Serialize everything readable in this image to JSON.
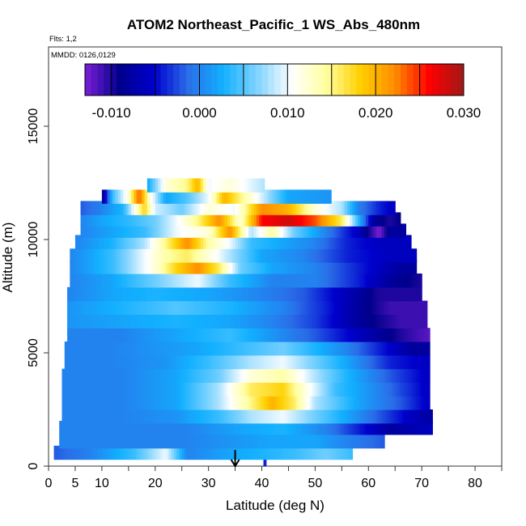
{
  "chart_data": {
    "type": "heatmap",
    "title": "ATOM2 Northeast_Pacific_1 WS_Abs_480nm",
    "flights_label": "Flts: 1,2",
    "dates_label": "MMDD: 0126,0129",
    "xlabel": "Latitude (deg N)",
    "ylabel": "Altitude (m)",
    "xlim": [
      0,
      85
    ],
    "ylim": [
      0,
      18500
    ],
    "x_ticks": [
      0,
      5,
      10,
      20,
      30,
      40,
      50,
      60,
      70,
      80
    ],
    "x_minor_ticks": [
      15,
      25,
      35,
      45,
      55,
      65,
      75,
      85
    ],
    "y_ticks": [
      0,
      5000,
      10000,
      15000
    ],
    "colorbar": {
      "min": -0.013,
      "max": 0.03,
      "ticks": [
        "-0.010",
        "0.000",
        "0.010",
        "0.020",
        "0.030"
      ],
      "tick_values": [
        -0.01,
        0.0,
        0.01,
        0.02,
        0.03
      ],
      "colors": [
        "#7b1fd6",
        "#00008c",
        "#0000cd",
        "#2a6ee8",
        "#12b0ff",
        "#7fd3ff",
        "#ffffff",
        "#ffffa0",
        "#ffd000",
        "#ff8c00",
        "#ff0000",
        "#a01818"
      ]
    },
    "marker": {
      "latitude": 35,
      "label": "arrow"
    },
    "layers": [
      {
        "alt": 12400,
        "lat_min": 18.5,
        "lat_max": 40.5,
        "stops": [
          [
            18.5,
            0.002
          ],
          [
            22,
            0.012
          ],
          [
            26,
            0.015
          ],
          [
            28,
            0.02
          ],
          [
            30,
            0.01
          ],
          [
            34,
            0.012
          ],
          [
            40.5,
            0.008
          ]
        ]
      },
      {
        "alt": 11900,
        "lat_min": 10,
        "lat_max": 53,
        "stops": [
          [
            10,
            -0.01
          ],
          [
            12,
            0.004
          ],
          [
            15,
            0.012
          ],
          [
            17,
            0.024
          ],
          [
            19,
            0.012
          ],
          [
            22,
            0.002
          ],
          [
            26,
            0.005
          ],
          [
            30,
            0.01
          ],
          [
            33,
            0.02
          ],
          [
            38,
            0.012
          ],
          [
            45,
            0.002
          ],
          [
            53,
            0.001
          ]
        ]
      },
      {
        "alt": 11400,
        "lat_min": 6,
        "lat_max": 65,
        "stops": [
          [
            6,
            -0.002
          ],
          [
            10,
            0.0
          ],
          [
            14,
            0.003
          ],
          [
            18,
            0.018
          ],
          [
            20,
            0.009
          ],
          [
            25,
            0.006
          ],
          [
            30,
            0.012
          ],
          [
            35,
            0.01
          ],
          [
            40,
            0.022
          ],
          [
            45,
            0.02
          ],
          [
            50,
            0.012
          ],
          [
            55,
            0.008
          ],
          [
            58,
            0.0
          ],
          [
            62,
            -0.004
          ],
          [
            65,
            -0.006
          ]
        ]
      },
      {
        "alt": 10900,
        "lat_min": 6,
        "lat_max": 66,
        "stops": [
          [
            6,
            0.0
          ],
          [
            10,
            0.002
          ],
          [
            16,
            0.004
          ],
          [
            20,
            0.006
          ],
          [
            24,
            0.01
          ],
          [
            28,
            0.015
          ],
          [
            32,
            0.022
          ],
          [
            36,
            0.012
          ],
          [
            40,
            0.026
          ],
          [
            45,
            0.028
          ],
          [
            50,
            0.024
          ],
          [
            55,
            0.016
          ],
          [
            58,
            0.004
          ],
          [
            61,
            -0.008
          ],
          [
            64,
            -0.01
          ],
          [
            66,
            -0.009
          ]
        ]
      },
      {
        "alt": 10400,
        "lat_min": 6,
        "lat_max": 67,
        "stops": [
          [
            6,
            0.0
          ],
          [
            12,
            0.002
          ],
          [
            18,
            0.004
          ],
          [
            24,
            0.01
          ],
          [
            30,
            0.012
          ],
          [
            34,
            0.022
          ],
          [
            38,
            0.008
          ],
          [
            42,
            0.014
          ],
          [
            46,
            0.006
          ],
          [
            52,
            0.0
          ],
          [
            58,
            -0.006
          ],
          [
            62,
            -0.013
          ],
          [
            64,
            -0.008
          ],
          [
            67,
            -0.008
          ]
        ]
      },
      {
        "alt": 9900,
        "lat_min": 5,
        "lat_max": 68,
        "stops": [
          [
            5,
            0.0
          ],
          [
            12,
            0.003
          ],
          [
            18,
            0.008
          ],
          [
            22,
            0.015
          ],
          [
            26,
            0.022
          ],
          [
            30,
            0.014
          ],
          [
            34,
            0.01
          ],
          [
            38,
            0.004
          ],
          [
            44,
            0.002
          ],
          [
            50,
            0.0
          ],
          [
            56,
            -0.004
          ],
          [
            62,
            -0.006
          ],
          [
            68,
            -0.006
          ]
        ]
      },
      {
        "alt": 9300,
        "lat_min": 4,
        "lat_max": 69,
        "stops": [
          [
            4,
            0.0
          ],
          [
            12,
            0.004
          ],
          [
            18,
            0.01
          ],
          [
            22,
            0.014
          ],
          [
            26,
            0.016
          ],
          [
            30,
            0.012
          ],
          [
            34,
            0.008
          ],
          [
            40,
            0.002
          ],
          [
            48,
            0.0
          ],
          [
            56,
            -0.004
          ],
          [
            64,
            -0.006
          ],
          [
            69,
            -0.006
          ]
        ]
      },
      {
        "alt": 8800,
        "lat_min": 4,
        "lat_max": 69,
        "stops": [
          [
            4,
            0.0
          ],
          [
            12,
            0.004
          ],
          [
            20,
            0.012
          ],
          [
            24,
            0.018
          ],
          [
            28,
            0.022
          ],
          [
            32,
            0.016
          ],
          [
            36,
            0.006
          ],
          [
            42,
            0.002
          ],
          [
            50,
            0.0
          ],
          [
            58,
            -0.004
          ],
          [
            66,
            -0.008
          ],
          [
            69,
            -0.008
          ]
        ]
      },
      {
        "alt": 8200,
        "lat_min": 4,
        "lat_max": 70,
        "stops": [
          [
            4,
            0.0
          ],
          [
            12,
            0.002
          ],
          [
            20,
            0.006
          ],
          [
            28,
            0.01
          ],
          [
            34,
            0.004
          ],
          [
            42,
            0.0
          ],
          [
            50,
            0.0
          ],
          [
            58,
            -0.004
          ],
          [
            64,
            -0.008
          ],
          [
            70,
            -0.01
          ]
        ]
      },
      {
        "alt": 7600,
        "lat_min": 3.5,
        "lat_max": 70,
        "stops": [
          [
            3.5,
            0.0
          ],
          [
            12,
            0.002
          ],
          [
            20,
            0.003
          ],
          [
            30,
            0.002
          ],
          [
            40,
            0.0
          ],
          [
            48,
            -0.002
          ],
          [
            55,
            -0.006
          ],
          [
            62,
            -0.01
          ],
          [
            70,
            -0.01
          ]
        ]
      },
      {
        "alt": 7000,
        "lat_min": 3.5,
        "lat_max": 71,
        "stops": [
          [
            3.5,
            0.001
          ],
          [
            14,
            0.003
          ],
          [
            24,
            0.005
          ],
          [
            34,
            0.003
          ],
          [
            44,
            0.0
          ],
          [
            52,
            -0.004
          ],
          [
            58,
            -0.008
          ],
          [
            64,
            -0.011
          ],
          [
            71,
            -0.011
          ]
        ]
      },
      {
        "alt": 6400,
        "lat_min": 3.5,
        "lat_max": 71,
        "stops": [
          [
            3.5,
            0.001
          ],
          [
            14,
            0.002
          ],
          [
            24,
            0.003
          ],
          [
            34,
            0.002
          ],
          [
            42,
            0.0
          ],
          [
            50,
            -0.003
          ],
          [
            58,
            -0.008
          ],
          [
            66,
            -0.011
          ],
          [
            71,
            -0.011
          ]
        ]
      },
      {
        "alt": 5800,
        "lat_min": 3.5,
        "lat_max": 71.5,
        "stops": [
          [
            3.5,
            0.0
          ],
          [
            14,
            0.0
          ],
          [
            24,
            0.002
          ],
          [
            34,
            0.004
          ],
          [
            42,
            0.001
          ],
          [
            50,
            -0.002
          ],
          [
            58,
            -0.006
          ],
          [
            66,
            -0.01
          ],
          [
            71.5,
            -0.012
          ]
        ]
      },
      {
        "alt": 5200,
        "lat_min": 3,
        "lat_max": 71.5,
        "stops": [
          [
            3,
            0.0
          ],
          [
            12,
            0.0
          ],
          [
            20,
            0.001
          ],
          [
            28,
            0.002
          ],
          [
            36,
            0.004
          ],
          [
            44,
            0.006
          ],
          [
            50,
            0.003
          ],
          [
            56,
            0.0
          ],
          [
            62,
            -0.004
          ],
          [
            68,
            -0.008
          ],
          [
            71.5,
            -0.008
          ]
        ]
      },
      {
        "alt": 4600,
        "lat_min": 3,
        "lat_max": 71.5,
        "stops": [
          [
            3,
            0.0
          ],
          [
            12,
            0.0
          ],
          [
            22,
            0.001
          ],
          [
            30,
            0.004
          ],
          [
            38,
            0.008
          ],
          [
            44,
            0.01
          ],
          [
            50,
            0.006
          ],
          [
            56,
            0.002
          ],
          [
            64,
            -0.004
          ],
          [
            71.5,
            -0.006
          ]
        ]
      },
      {
        "alt": 4000,
        "lat_min": 2.5,
        "lat_max": 71.5,
        "stops": [
          [
            2.5,
            0.0
          ],
          [
            14,
            0.0
          ],
          [
            24,
            0.002
          ],
          [
            32,
            0.006
          ],
          [
            38,
            0.012
          ],
          [
            44,
            0.014
          ],
          [
            50,
            0.008
          ],
          [
            56,
            0.003
          ],
          [
            64,
            -0.002
          ],
          [
            71.5,
            -0.006
          ]
        ]
      },
      {
        "alt": 3400,
        "lat_min": 2.5,
        "lat_max": 71.5,
        "stops": [
          [
            2.5,
            0.0
          ],
          [
            14,
            0.0
          ],
          [
            24,
            0.002
          ],
          [
            32,
            0.008
          ],
          [
            38,
            0.016
          ],
          [
            44,
            0.018
          ],
          [
            48,
            0.012
          ],
          [
            54,
            0.004
          ],
          [
            62,
            0.0
          ],
          [
            71.5,
            -0.006
          ]
        ]
      },
      {
        "alt": 2800,
        "lat_min": 2.5,
        "lat_max": 71.5,
        "stops": [
          [
            2.5,
            0.0
          ],
          [
            14,
            0.0
          ],
          [
            24,
            0.002
          ],
          [
            32,
            0.008
          ],
          [
            38,
            0.015
          ],
          [
            42,
            0.02
          ],
          [
            46,
            0.016
          ],
          [
            50,
            0.008
          ],
          [
            58,
            0.002
          ],
          [
            66,
            -0.002
          ],
          [
            71.5,
            -0.006
          ]
        ]
      },
      {
        "alt": 2200,
        "lat_min": 2.5,
        "lat_max": 72,
        "stops": [
          [
            2.5,
            0.0
          ],
          [
            14,
            0.0
          ],
          [
            24,
            0.001
          ],
          [
            32,
            0.004
          ],
          [
            38,
            0.008
          ],
          [
            44,
            0.01
          ],
          [
            50,
            0.006
          ],
          [
            56,
            0.002
          ],
          [
            62,
            -0.002
          ],
          [
            68,
            -0.006
          ],
          [
            72,
            -0.008
          ]
        ]
      },
      {
        "alt": 1700,
        "lat_min": 2,
        "lat_max": 72,
        "stops": [
          [
            2,
            0.0
          ],
          [
            14,
            0.0
          ],
          [
            26,
            0.0
          ],
          [
            36,
            0.002
          ],
          [
            44,
            0.003
          ],
          [
            52,
            0.0
          ],
          [
            58,
            -0.004
          ],
          [
            64,
            -0.008
          ],
          [
            72,
            -0.006
          ]
        ]
      },
      {
        "alt": 1100,
        "lat_min": 2,
        "lat_max": 63,
        "stops": [
          [
            2,
            0.0
          ],
          [
            14,
            0.0
          ],
          [
            26,
            0.0
          ],
          [
            34,
            0.001
          ],
          [
            42,
            0.002
          ],
          [
            50,
            0.002
          ],
          [
            56,
            0.0
          ],
          [
            63,
            -0.002
          ]
        ]
      },
      {
        "alt": 600,
        "lat_min": 1,
        "lat_max": 57,
        "stops": [
          [
            1,
            -0.002
          ],
          [
            8,
            0.0
          ],
          [
            16,
            0.004
          ],
          [
            22,
            0.01
          ],
          [
            26,
            0.0
          ],
          [
            34,
            0.002
          ],
          [
            40,
            0.003
          ],
          [
            46,
            0.004
          ],
          [
            52,
            0.006
          ],
          [
            57,
            0.004
          ]
        ]
      },
      {
        "alt": 150,
        "lat_min": 40.3,
        "lat_max": 40.8,
        "stops": [
          [
            40.3,
            -0.004
          ],
          [
            40.8,
            -0.004
          ]
        ]
      }
    ]
  }
}
